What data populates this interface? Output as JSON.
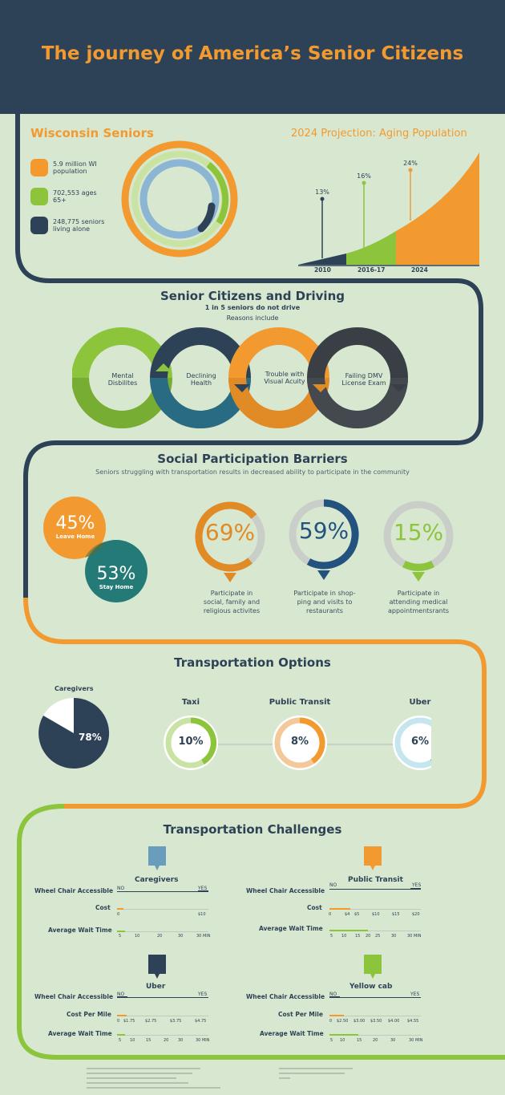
{
  "header": {
    "title": "The journey of America’s Senior Citizens"
  },
  "wisconsin": {
    "title": "Wisconsin Seniors",
    "legend": [
      {
        "text": "5.9 million WI population",
        "color": "#f29a30"
      },
      {
        "text": "702,553 ages 65+",
        "color": "#8cc43c"
      },
      {
        "text": "248,775 seniors living alone",
        "color": "#2d4257"
      }
    ]
  },
  "projection": {
    "title": "2024 Projection: Aging Population",
    "chart_data": {
      "type": "area",
      "categories": [
        "2010",
        "2016-17",
        "2024"
      ],
      "values": [
        13,
        16,
        24
      ],
      "labels": [
        "13%",
        "16%",
        "24%"
      ],
      "colors": [
        "#2d4257",
        "#8cc43c",
        "#f29a30"
      ]
    }
  },
  "driving": {
    "title": "Senior Citizens and Driving",
    "subtitle": "1 in 5 seniors do not drive",
    "reasons_label": "Reasons include",
    "reasons": [
      {
        "line1": "Mental",
        "line2": "Disbilites",
        "color": "#8cc43c"
      },
      {
        "line1": "Declining",
        "line2": "Health",
        "color": "#2d4257"
      },
      {
        "line1": "Trouble with",
        "line2": "Visual Acuity",
        "color": "#f29a30"
      },
      {
        "line1": "Failing DMV",
        "line2": "License Exam",
        "color": "#3a3f45"
      }
    ]
  },
  "social": {
    "title": "Social Participation Barriers",
    "subtitle": "Seniors struggling with transportation results in decreased ability to participate in the community",
    "leave": {
      "value": "45%",
      "label": "Leave Home"
    },
    "stay": {
      "value": "53%",
      "label": "Stay Home"
    },
    "donuts": [
      {
        "value": "69%",
        "fraction": 0.69,
        "color": "#e08b25",
        "caption": [
          "Participate in",
          "social, family and",
          "religious activites"
        ]
      },
      {
        "value": "59%",
        "fraction": 0.59,
        "color": "#24527e",
        "caption": [
          "Participate in shop-",
          "ping and visits to",
          "restaurants"
        ]
      },
      {
        "value": "15%",
        "fraction": 0.15,
        "color": "#8cc43c",
        "caption": [
          "Participate in",
          "attending medical",
          "appointmentsrants"
        ]
      }
    ]
  },
  "transport": {
    "title": "Transportation Options",
    "caregivers": {
      "label": "Caregivers",
      "value": "78%",
      "fraction": 0.78
    },
    "options": [
      {
        "label": "Taxi",
        "value": "10%",
        "fraction": 0.1,
        "color": "#8cc43c",
        "bg": "#c9e3a4"
      },
      {
        "label": "Public Transit",
        "value": "8%",
        "fraction": 0.08,
        "color": "#f29a30",
        "bg": "#f4c99a"
      },
      {
        "label": "Uber",
        "value": "6%",
        "fraction": 0.06,
        "color": "#4f6b80",
        "bg": "#c6e6ef"
      }
    ]
  },
  "challenges": {
    "title": "Transportation Challenges",
    "row_wheel": "Wheel Chair Accessible",
    "row_cost": "Cost",
    "row_cost_mile": "Cost Per Mile",
    "row_wait": "Average Wait Time",
    "no": "NO",
    "yes": "YES",
    "cards": [
      {
        "name": "Caregivers",
        "color": "#6a9cbc",
        "cost_ticks": [
          "0",
          "$10"
        ],
        "wait_ticks": [
          "5",
          "10",
          "20",
          "30",
          "30 MIN"
        ]
      },
      {
        "name": "Public Transit",
        "color": "#f29a30",
        "cost_ticks": [
          "0",
          "$4",
          "$5",
          "$10",
          "$15",
          "$20"
        ],
        "wait_ticks": [
          "5",
          "10",
          "15",
          "20",
          "25",
          "30",
          "30 MIN"
        ]
      },
      {
        "name": "Uber",
        "color": "#2d4257",
        "cost_ticks": [
          "0",
          "$1.75",
          "$2.75",
          "$3.75",
          "$4.75"
        ],
        "wait_ticks": [
          "5",
          "10",
          "15",
          "20",
          "30",
          "30 MIN"
        ]
      },
      {
        "name": "Yellow cab",
        "color": "#8cc43c",
        "cost_ticks": [
          "0",
          "$2.50",
          "$3.00",
          "$3.50",
          "$4.00",
          "$4.55"
        ],
        "wait_ticks": [
          "5",
          "10",
          "15",
          "20",
          "30",
          "30 MIN"
        ]
      }
    ]
  }
}
